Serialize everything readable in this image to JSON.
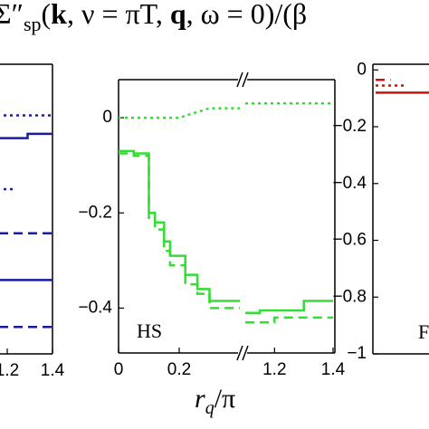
{
  "title_parts": [
    "Σ″",
    "sp",
    "(",
    "k",
    ", ν = πT, ",
    "q",
    ", ω = 0)/(β"
  ],
  "xlabel_parts": [
    "r",
    "q",
    "/π"
  ],
  "chart_data": [
    {
      "type": "line",
      "xlim": [
        1.1,
        1.4
      ],
      "ylim": [
        -1,
        0.02
      ],
      "xticks": [
        1.2,
        1.4
      ],
      "series": [
        {
          "color": "#1a1aa8",
          "style": "dotted",
          "x": [
            1.1,
            1.4
          ],
          "values": [
            -0.16,
            -0.16
          ]
        },
        {
          "color": "#1a1aa8",
          "style": "solid",
          "x": [
            1.1,
            1.29,
            1.29,
            1.4
          ],
          "values": [
            -0.24,
            -0.24,
            -0.225,
            -0.225
          ]
        },
        {
          "color": "#1a1aa8",
          "style": "dotted",
          "x": [
            1.1,
            1.24
          ],
          "values": [
            -0.42,
            -0.42
          ]
        },
        {
          "color": "#1a1aa8",
          "style": "dashed",
          "x": [
            1.1,
            1.4
          ],
          "values": [
            -0.575,
            -0.575
          ]
        },
        {
          "color": "#1a1aa8",
          "style": "solid",
          "x": [
            1.1,
            1.4
          ],
          "values": [
            -0.74,
            -0.74
          ]
        },
        {
          "color": "#1a1aa8",
          "style": "dashed",
          "x": [
            1.1,
            1.4
          ],
          "values": [
            -0.905,
            -0.905
          ]
        }
      ]
    },
    {
      "type": "line",
      "xlim": [
        0,
        1.4
      ],
      "xbreak": [
        0.4,
        1.1
      ],
      "ylim": [
        -0.5,
        0.08
      ],
      "xticks": [
        0,
        0.2,
        1.2,
        1.4
      ],
      "yticks": [
        0,
        {
          "value": -0.2,
          "label": "−0.2"
        },
        {
          "value": -0.4,
          "label": "−0.4"
        }
      ],
      "annotation": "HS",
      "series": [
        {
          "color": "#33dd33",
          "style": "dotted",
          "x": [
            0,
            0.2,
            0.25,
            0.3,
            0.4,
            null,
            1.1,
            1.4
          ],
          "values": [
            0,
            0,
            0.01,
            0.02,
            0.02,
            null,
            0.03,
            0.03
          ]
        },
        {
          "color": "#33dd33",
          "style": "solid",
          "x": [
            0,
            0.05,
            0.05,
            0.1,
            0.1,
            0.12,
            0.12,
            0.15,
            0.15,
            0.17,
            0.17,
            0.22,
            0.22,
            0.26,
            0.26,
            0.3,
            0.3,
            0.4,
            null,
            1.1,
            1.15,
            1.15,
            1.3,
            1.3,
            1.4
          ],
          "values": [
            -0.07,
            -0.07,
            -0.075,
            -0.075,
            -0.2,
            -0.2,
            -0.22,
            -0.22,
            -0.26,
            -0.26,
            -0.29,
            -0.29,
            -0.33,
            -0.33,
            -0.36,
            -0.36,
            -0.385,
            -0.385,
            null,
            -0.41,
            -0.41,
            -0.405,
            -0.405,
            -0.385,
            -0.385
          ]
        },
        {
          "color": "#33dd33",
          "style": "dashed",
          "x": [
            0,
            0.05,
            0.05,
            0.1,
            0.1,
            0.12,
            0.12,
            0.15,
            0.15,
            0.17,
            0.17,
            0.22,
            0.22,
            0.26,
            0.26,
            0.3,
            0.3,
            0.4,
            null,
            1.1,
            1.2,
            1.2,
            1.4
          ],
          "values": [
            -0.075,
            -0.075,
            -0.08,
            -0.08,
            -0.21,
            -0.21,
            -0.235,
            -0.235,
            -0.28,
            -0.28,
            -0.31,
            -0.31,
            -0.35,
            -0.35,
            -0.37,
            -0.37,
            -0.4,
            -0.4,
            null,
            -0.43,
            -0.43,
            -0.42,
            -0.42
          ]
        }
      ]
    },
    {
      "type": "line",
      "xlim": [
        0,
        0.4
      ],
      "ylim": [
        -1,
        0.02
      ],
      "yticks": [
        0,
        {
          "value": -0.2,
          "label": "−0.2"
        },
        {
          "value": -0.4,
          "label": "−0.4"
        },
        {
          "value": -0.6,
          "label": "−0.6"
        },
        {
          "value": -0.8,
          "label": "−0.8"
        },
        {
          "value": -1,
          "label": "−1"
        }
      ],
      "annotation": "F",
      "series": [
        {
          "color": "#cc1111",
          "style": "dashed",
          "x": [
            0,
            0.05
          ],
          "values": [
            -0.035,
            -0.035
          ]
        },
        {
          "color": "#cc1111",
          "style": "dotted",
          "x": [
            0,
            0.1
          ],
          "values": [
            -0.055,
            -0.055
          ]
        },
        {
          "color": "#cc1111",
          "style": "solid",
          "x": [
            0,
            0.2
          ],
          "values": [
            -0.08,
            -0.08
          ]
        }
      ]
    }
  ]
}
